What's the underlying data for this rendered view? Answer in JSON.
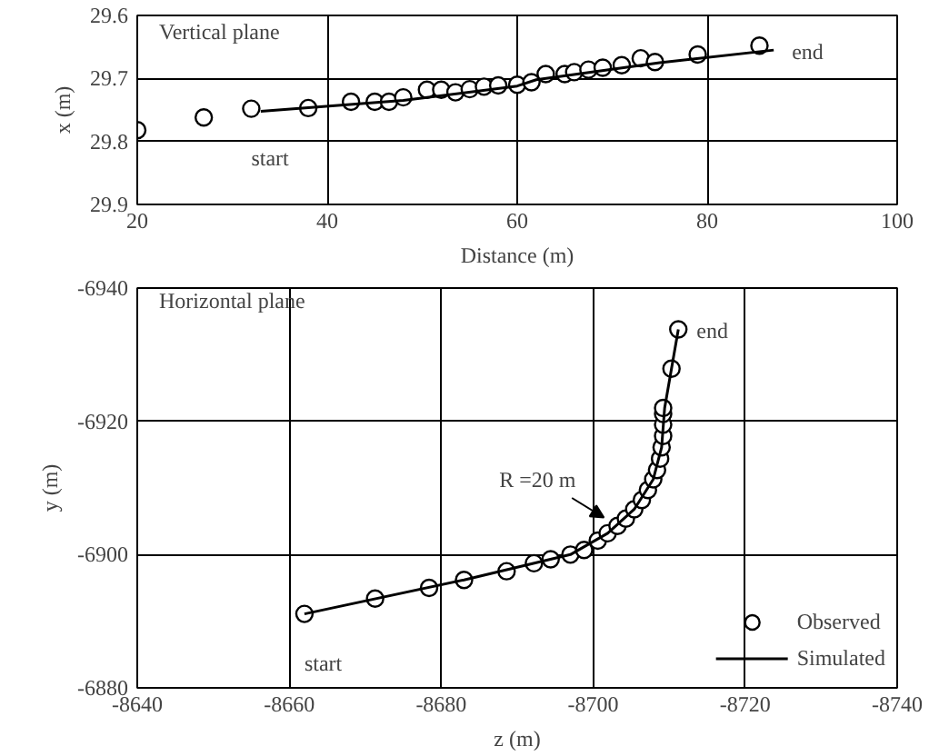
{
  "chart_data": [
    {
      "type": "scatter",
      "xlabel": "Distance (m)",
      "ylabel": "x (m)",
      "xlim": [
        20,
        100
      ],
      "ylim": [
        29.9,
        29.6
      ],
      "xticks": [
        20,
        40,
        60,
        80,
        100
      ],
      "yticks": [
        29.6,
        29.7,
        29.8,
        29.9
      ],
      "grid": true,
      "legend": false,
      "annotations": [
        "Vertical plane",
        {
          "text": "start",
          "x": 32,
          "y": 29.748
        },
        {
          "text": "end",
          "x": 87,
          "y": 29.655
        }
      ],
      "series": [
        {
          "type": "scatter",
          "marker": "circle",
          "color": "#000000",
          "x": [
            20,
            27,
            32,
            38,
            42.5,
            45,
            46.5,
            48,
            50.5,
            52,
            53.5,
            55,
            56.5,
            58,
            60,
            61.5,
            63,
            65,
            66,
            67.5,
            69,
            71,
            73,
            74.5,
            79,
            85.5
          ],
          "values": [
            29.782,
            29.762,
            29.748,
            29.747,
            29.737,
            29.737,
            29.737,
            29.73,
            29.718,
            29.718,
            29.722,
            29.717,
            29.713,
            29.711,
            29.71,
            29.706,
            29.693,
            29.693,
            29.69,
            29.686,
            29.683,
            29.679,
            29.668,
            29.674,
            29.662,
            29.648
          ]
        },
        {
          "type": "line",
          "marker": "none",
          "line_style": "solid",
          "color": "#000000",
          "x": [
            33,
            48,
            60,
            62,
            75,
            87
          ],
          "values": [
            29.752,
            29.735,
            29.712,
            29.702,
            29.675,
            29.655
          ]
        }
      ]
    },
    {
      "type": "scatter",
      "xlabel": "z (m)",
      "ylabel": "y (m)",
      "xlim": [
        -8640,
        -8740
      ],
      "ylim": [
        -6880,
        -6940
      ],
      "xticks": [
        -8640,
        -8660,
        -8680,
        -8700,
        -8720,
        -8740
      ],
      "yticks": [
        -6940,
        -6920,
        -6900,
        -6880
      ],
      "grid": true,
      "legend": "bottom right",
      "annotations": [
        "Horizontal plane",
        {
          "text": "start",
          "x": -8662,
          "y": -6891.1
        },
        {
          "text": "end",
          "x": -8711.2,
          "y": -6933.8
        },
        {
          "text": "R =20 m",
          "x": -8703.2,
          "y": -6904.3
        }
      ],
      "series": [
        {
          "name": "Observed",
          "type": "scatter",
          "marker": "circle",
          "color": "#000000",
          "x": [
            -8662,
            -8671.3,
            -8678.4,
            -8683,
            -8688.6,
            -8692.2,
            -8694.4,
            -8697,
            -8698.8,
            -8700.6,
            -8701.9,
            -8703.2,
            -8704.3,
            -8705.4,
            -8706.4,
            -8707.2,
            -8707.9,
            -8708.4,
            -8708.8,
            -8709,
            -8709.2,
            -8709.2,
            -8709.2,
            -8709.2,
            -8710.3,
            -8711.2
          ],
          "values": [
            -6891.1,
            -6893.4,
            -6895,
            -6896.2,
            -6897.5,
            -6898.7,
            -6899.3,
            -6900,
            -6900.7,
            -6902.1,
            -6903.2,
            -6904.3,
            -6905.4,
            -6906.8,
            -6908.2,
            -6909.7,
            -6911.3,
            -6912.7,
            -6914.4,
            -6916.1,
            -6917.8,
            -6919.5,
            -6921.1,
            -6922,
            -6927.9,
            -6933.8
          ]
        },
        {
          "name": "Simulated",
          "type": "line",
          "marker": "none",
          "line_style": "solid",
          "color": "#000000",
          "x": [
            -8662,
            -8683,
            -8697,
            -8701.9,
            -8705.4,
            -8707.9,
            -8709,
            -8709.4,
            -8711.2
          ],
          "values": [
            -6891.1,
            -6896.2,
            -6900,
            -6903.2,
            -6906.8,
            -6911.3,
            -6916.1,
            -6922,
            -6933.8
          ]
        }
      ]
    }
  ]
}
